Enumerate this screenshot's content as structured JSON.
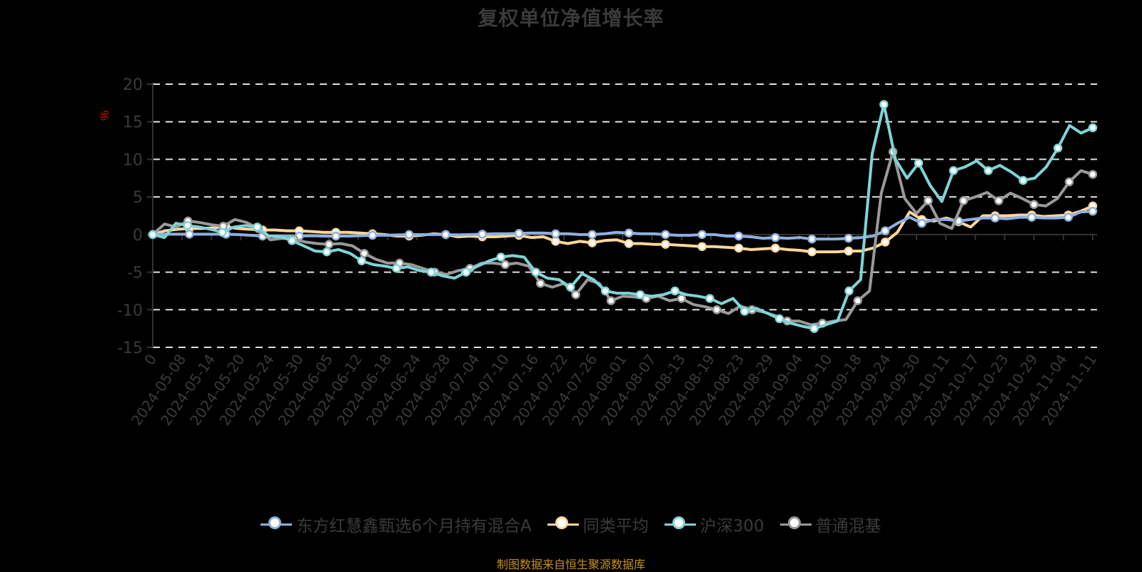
{
  "title": "复权单位净值增长率",
  "footer": "制图数据来自恒生聚源数据库",
  "colors": {
    "fund": "#8eb0e0",
    "peer_avg": "#ffd79a",
    "csi300": "#7fd4d8",
    "mixed": "#999999",
    "unit_label": "#ff0000",
    "footer": "#c8921a"
  },
  "legend": [
    {
      "name": "东方红慧鑫甄选6个月持有混合A",
      "color": "#8eb0e0"
    },
    {
      "name": "同类平均",
      "color": "#ffd79a"
    },
    {
      "name": "沪深300",
      "color": "#7fd4d8"
    },
    {
      "name": "普通混基",
      "color": "#999999"
    }
  ],
  "chart_data": {
    "type": "line",
    "title": "复权单位净值增长率",
    "xlabel": "",
    "ylabel": "%",
    "ylim": [
      -15,
      20
    ],
    "yticks": [
      20,
      15,
      10,
      5,
      0,
      -5,
      -10,
      -15
    ],
    "grid": true,
    "legend_position": "bottom",
    "x_tick_labels": [
      "0",
      "2024-05-08",
      "2024-05-14",
      "2024-05-20",
      "2024-05-24",
      "2024-05-30",
      "2024-06-05",
      "2024-06-12",
      "2024-06-18",
      "2024-06-24",
      "2024-06-28",
      "2024-07-04",
      "2024-07-10",
      "2024-07-16",
      "2024-07-22",
      "2024-07-26",
      "2024-08-01",
      "2024-08-07",
      "2024-08-13",
      "2024-08-19",
      "2024-08-23",
      "2024-08-29",
      "2024-09-04",
      "2024-09-10",
      "2024-09-18",
      "2024-09-24",
      "2024-09-30",
      "2024-10-11",
      "2024-10-17",
      "2024-10-23",
      "2024-10-29",
      "2024-11-04",
      "2024-11-11"
    ],
    "series": [
      {
        "name": "东方红慧鑫甄选6个月持有混合A",
        "values": [
          0,
          0.05,
          0.05,
          0.05,
          0.05,
          0.05,
          0.05,
          0.0,
          -0.1,
          -0.2,
          -0.2,
          -0.2,
          -0.2,
          -0.15,
          -0.2,
          -0.2,
          -0.2,
          -0.15,
          -0.1,
          -0.1,
          -0.05,
          0.0,
          0.0,
          0.0,
          0.0,
          -0.05,
          0.0,
          0.05,
          0.1,
          0.1,
          0.15,
          0.2,
          0.2,
          0.1,
          0.1,
          0.0,
          0.0,
          0.1,
          0.3,
          0.2,
          0.1,
          0.1,
          0.0,
          -0.1,
          -0.1,
          0.0,
          0.0,
          -0.2,
          -0.2,
          -0.3,
          -0.5,
          -0.4,
          -0.5,
          -0.4,
          -0.6,
          -0.6,
          -0.6,
          -0.5,
          -0.4,
          -0.2,
          0.5,
          1.5,
          2.3,
          1.5,
          2.0,
          2.0,
          1.8,
          2.0,
          2.2,
          2.2,
          2.1,
          2.3,
          2.3,
          2.2,
          2.2,
          2.3,
          3.0,
          3.1
        ]
      },
      {
        "name": "同类平均",
        "values": [
          0,
          0.5,
          0.7,
          0.8,
          0.8,
          0.9,
          1.0,
          0.8,
          0.7,
          0.6,
          0.6,
          0.5,
          0.5,
          0.4,
          0.3,
          0.3,
          0.3,
          0.2,
          0.1,
          0.0,
          -0.2,
          -0.2,
          -0.1,
          0.1,
          0.0,
          -0.3,
          -0.2,
          -0.3,
          -0.3,
          -0.2,
          -0.1,
          -0.4,
          -0.3,
          -0.9,
          -1.2,
          -0.9,
          -1.1,
          -0.8,
          -0.7,
          -1.2,
          -1.2,
          -1.3,
          -1.3,
          -1.4,
          -1.5,
          -1.6,
          -1.6,
          -1.7,
          -1.8,
          -2.0,
          -1.9,
          -1.8,
          -2.0,
          -2.1,
          -2.3,
          -2.3,
          -2.3,
          -2.2,
          -2.2,
          -1.8,
          -1.0,
          0.3,
          3.0,
          2.0,
          1.8,
          2.2,
          1.7,
          1.0,
          2.5,
          2.5,
          2.5,
          2.6,
          2.6,
          2.4,
          2.5,
          2.6,
          3.1,
          3.8
        ]
      },
      {
        "name": "沪深300",
        "values": [
          0,
          -0.4,
          1.5,
          1.2,
          1.0,
          0.7,
          0.3,
          1.0,
          1.2,
          1.0,
          -0.2,
          -0.3,
          -0.8,
          -1.5,
          -2.2,
          -2.3,
          -2.0,
          -2.5,
          -3.5,
          -4.0,
          -4.2,
          -4.5,
          -4.3,
          -4.8,
          -5.0,
          -5.5,
          -5.8,
          -5.0,
          -4.2,
          -3.5,
          -3.0,
          -2.8,
          -3.0,
          -5.0,
          -5.8,
          -6.0,
          -7.0,
          -5.2,
          -6.0,
          -7.5,
          -7.8,
          -7.8,
          -8.0,
          -8.2,
          -8.0,
          -7.5,
          -8.0,
          -8.2,
          -8.5,
          -9.2,
          -8.5,
          -10.2,
          -9.8,
          -10.5,
          -11.2,
          -11.8,
          -12.2,
          -12.5,
          -12.0,
          -11.5,
          -7.5,
          -6.0,
          10.8,
          17.3,
          10.0,
          7.5,
          9.5,
          6.5,
          4.4,
          8.5,
          9.0,
          9.8,
          8.5,
          9.2,
          8.3,
          7.2,
          7.5,
          9.0,
          11.5,
          14.5,
          13.5,
          14.2
        ]
      },
      {
        "name": "普通混基",
        "values": [
          0,
          1.4,
          1.0,
          1.8,
          1.6,
          1.3,
          1.1,
          2.0,
          1.6,
          0.8,
          -0.7,
          -0.5,
          -0.6,
          -1.0,
          -1.2,
          -1.3,
          -1.2,
          -1.5,
          -2.5,
          -3.3,
          -3.8,
          -3.8,
          -4.0,
          -4.5,
          -5.0,
          -5.3,
          -4.8,
          -4.5,
          -3.8,
          -3.8,
          -4.0,
          -3.8,
          -4.2,
          -6.5,
          -7.0,
          -6.5,
          -8.0,
          -6.0,
          -6.5,
          -8.8,
          -8.2,
          -8.3,
          -8.5,
          -8.2,
          -8.8,
          -8.5,
          -9.3,
          -9.6,
          -10.0,
          -10.5,
          -9.5,
          -10.0,
          -10.3,
          -10.8,
          -11.5,
          -11.5,
          -12.0,
          -11.8,
          -11.5,
          -11.3,
          -8.8,
          -7.5,
          5.5,
          11.0,
          4.8,
          2.8,
          4.5,
          1.5,
          0.8,
          4.5,
          5.0,
          5.6,
          4.5,
          5.5,
          4.8,
          4.0,
          3.8,
          4.8,
          7.0,
          8.5,
          8.0
        ]
      }
    ]
  }
}
